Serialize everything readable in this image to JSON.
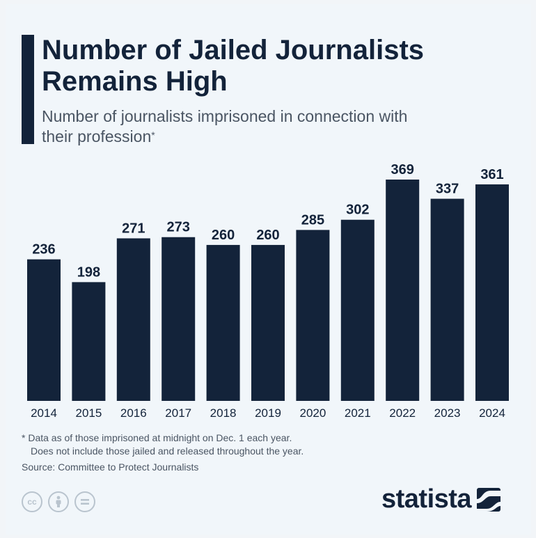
{
  "header": {
    "title": "Number of Jailed Journalists Remains High",
    "subtitle": "Number of journalists imprisoned in connection with their profession",
    "subtitle_mark": "*"
  },
  "chart_data": {
    "type": "bar",
    "title": "Number of Jailed Journalists Remains High",
    "subtitle": "Number of journalists imprisoned in connection with their profession*",
    "categories": [
      "2014",
      "2015",
      "2016",
      "2017",
      "2018",
      "2019",
      "2020",
      "2021",
      "2022",
      "2023",
      "2024"
    ],
    "values": [
      236,
      198,
      271,
      273,
      260,
      260,
      285,
      302,
      369,
      337,
      361
    ],
    "value_labels": [
      "236",
      "198",
      "271",
      "273",
      "260",
      "260",
      "285",
      "302",
      "369",
      "337",
      "361"
    ],
    "xlabel": "",
    "ylabel": "",
    "ylim": [
      0,
      400
    ],
    "grid": false,
    "legend": "none",
    "bar_color": "#13233a"
  },
  "footer": {
    "note_line1": "* Data as of those imprisoned at midnight on Dec. 1 each year.",
    "note_line2": "Does not include those jailed and released throughout the year.",
    "source": "Source: Committee to Protect Journalists",
    "license_icons": [
      "cc-icon",
      "attribution-icon",
      "no-derivatives-icon"
    ],
    "logo": "statista"
  }
}
